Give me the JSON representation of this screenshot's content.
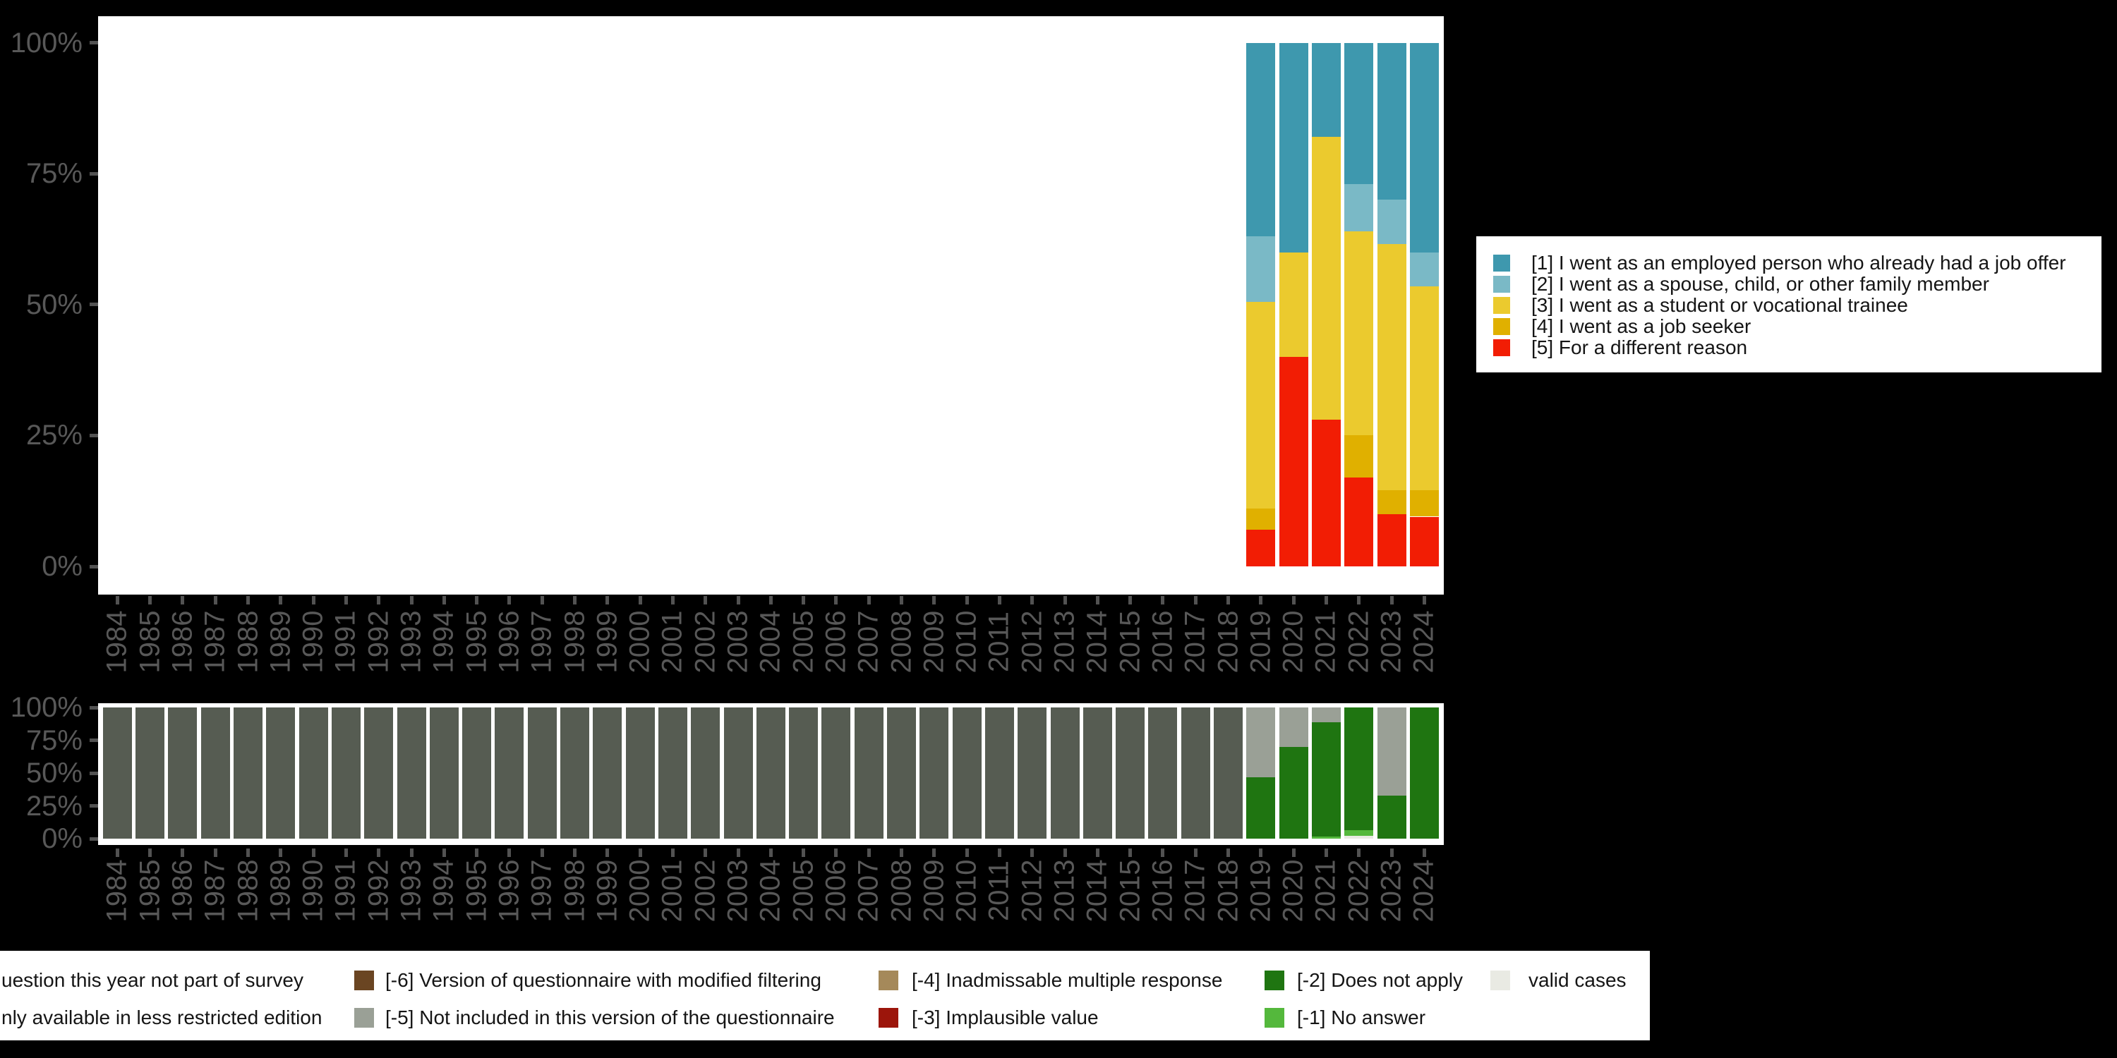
{
  "colors": {
    "background": "#000000",
    "panel": "#ffffff",
    "axis_text": "#585858",
    "tick": "#525252",
    "legend_text": "#151515"
  },
  "y_axis_ticks": [
    "100%",
    "75%",
    "50%",
    "25%",
    "0%"
  ],
  "reason_legend": {
    "items": [
      {
        "label": "[1] I went as an employed person who already had a job offer",
        "color": "#3e98ae"
      },
      {
        "label": "[2] I went as a spouse, child, or other family member",
        "color": "#7ab9c6"
      },
      {
        "label": "[3] I went as a student or vocational trainee",
        "color": "#ebca2e"
      },
      {
        "label": "[4] I went as a job seeker",
        "color": "#e0b000"
      },
      {
        "label": "[5] For a different reason",
        "color": "#f21d04"
      }
    ]
  },
  "missing_legend": {
    "rows": [
      [
        {
          "label": "uestion this year not part of survey",
          "color": null
        },
        {
          "label": "[-6] Version of questionnaire with modified filtering",
          "color": "#6a4522"
        },
        {
          "label": "[-4] Inadmissable multiple response",
          "color": "#a5895a"
        },
        {
          "label": "[-2] Does not apply",
          "color": "#1f7511"
        },
        {
          "label": "valid cases",
          "color": "#e9eae3"
        }
      ],
      [
        {
          "label": "nly available in less restricted edition",
          "color": null
        },
        {
          "label": "[-5] Not included in this version of the questionnaire",
          "color": "#9aa096"
        },
        {
          "label": "[-3] Implausible value",
          "color": "#9c150b"
        },
        {
          "label": "[-1] No answer",
          "color": "#54b83c"
        }
      ]
    ]
  },
  "chart_data": [
    {
      "type": "bar",
      "stacked": true,
      "title": "",
      "xlabel": "",
      "ylabel": "",
      "ylim": [
        0,
        100
      ],
      "y_tick_labels": [
        "0%",
        "25%",
        "50%",
        "75%",
        "100%"
      ],
      "legend_position": "right",
      "x_tick_labels_rotated": true,
      "categories": [
        "1984",
        "1985",
        "1986",
        "1987",
        "1988",
        "1989",
        "1990",
        "1991",
        "1992",
        "1993",
        "1994",
        "1995",
        "1996",
        "1997",
        "1998",
        "1999",
        "2000",
        "2001",
        "2002",
        "2003",
        "2004",
        "2005",
        "2006",
        "2007",
        "2008",
        "2009",
        "2010",
        "2011",
        "2012",
        "2013",
        "2014",
        "2015",
        "2016",
        "2017",
        "2018",
        "2019",
        "2020",
        "2021",
        "2022",
        "2023",
        "2024"
      ],
      "series": [
        {
          "name": "[1] I went as an employed person who already had a job offer",
          "color": "#3e98ae",
          "values": [
            0,
            0,
            0,
            0,
            0,
            0,
            0,
            0,
            0,
            0,
            0,
            0,
            0,
            0,
            0,
            0,
            0,
            0,
            0,
            0,
            0,
            0,
            0,
            0,
            0,
            0,
            0,
            0,
            0,
            0,
            0,
            0,
            0,
            0,
            0,
            37,
            40,
            18,
            27,
            30,
            40
          ]
        },
        {
          "name": "[2] I went as a spouse, child, or other family member",
          "color": "#7ab9c6",
          "values": [
            0,
            0,
            0,
            0,
            0,
            0,
            0,
            0,
            0,
            0,
            0,
            0,
            0,
            0,
            0,
            0,
            0,
            0,
            0,
            0,
            0,
            0,
            0,
            0,
            0,
            0,
            0,
            0,
            0,
            0,
            0,
            0,
            0,
            0,
            0,
            12.5,
            0,
            0,
            9,
            8.5,
            6.5
          ]
        },
        {
          "name": "[3] I went as a student or vocational trainee",
          "color": "#ebca2e",
          "values": [
            0,
            0,
            0,
            0,
            0,
            0,
            0,
            0,
            0,
            0,
            0,
            0,
            0,
            0,
            0,
            0,
            0,
            0,
            0,
            0,
            0,
            0,
            0,
            0,
            0,
            0,
            0,
            0,
            0,
            0,
            0,
            0,
            0,
            0,
            0,
            39.5,
            20,
            54,
            39,
            47,
            39
          ]
        },
        {
          "name": "[4] I went as a job seeker",
          "color": "#e0b000",
          "values": [
            0,
            0,
            0,
            0,
            0,
            0,
            0,
            0,
            0,
            0,
            0,
            0,
            0,
            0,
            0,
            0,
            0,
            0,
            0,
            0,
            0,
            0,
            0,
            0,
            0,
            0,
            0,
            0,
            0,
            0,
            0,
            0,
            0,
            0,
            0,
            4,
            0,
            0,
            8,
            4.5,
            5
          ]
        },
        {
          "name": "[5] For a different reason",
          "color": "#f21d04",
          "values": [
            0,
            0,
            0,
            0,
            0,
            0,
            0,
            0,
            0,
            0,
            0,
            0,
            0,
            0,
            0,
            0,
            0,
            0,
            0,
            0,
            0,
            0,
            0,
            0,
            0,
            0,
            0,
            0,
            0,
            0,
            0,
            0,
            0,
            0,
            0,
            7,
            40,
            28,
            17,
            10,
            9.5
          ]
        }
      ]
    },
    {
      "type": "bar",
      "stacked": true,
      "title": "",
      "xlabel": "",
      "ylabel": "",
      "ylim": [
        0,
        100
      ],
      "y_tick_labels": [
        "0%",
        "25%",
        "50%",
        "75%",
        "100%"
      ],
      "legend_position": "bottom",
      "x_tick_labels_rotated": true,
      "categories": [
        "1984",
        "1985",
        "1986",
        "1987",
        "1988",
        "1989",
        "1990",
        "1991",
        "1992",
        "1993",
        "1994",
        "1995",
        "1996",
        "1997",
        "1998",
        "1999",
        "2000",
        "2001",
        "2002",
        "2003",
        "2004",
        "2005",
        "2006",
        "2007",
        "2008",
        "2009",
        "2010",
        "2011",
        "2012",
        "2013",
        "2014",
        "2015",
        "2016",
        "2017",
        "2018",
        "2019",
        "2020",
        "2021",
        "2022",
        "2023",
        "2024"
      ],
      "series": [
        {
          "name": "uestion this year not part of survey",
          "color": "#565c52",
          "values": [
            100,
            100,
            100,
            100,
            100,
            100,
            100,
            100,
            100,
            100,
            100,
            100,
            100,
            100,
            100,
            100,
            100,
            100,
            100,
            100,
            100,
            100,
            100,
            100,
            100,
            100,
            100,
            100,
            100,
            100,
            100,
            100,
            100,
            100,
            100,
            0,
            0,
            0,
            0,
            0,
            0
          ]
        },
        {
          "name": "[-5] Not included in this version of the questionnaire",
          "color": "#9aa096",
          "values": [
            0,
            0,
            0,
            0,
            0,
            0,
            0,
            0,
            0,
            0,
            0,
            0,
            0,
            0,
            0,
            0,
            0,
            0,
            0,
            0,
            0,
            0,
            0,
            0,
            0,
            0,
            0,
            0,
            0,
            0,
            0,
            0,
            0,
            0,
            0,
            53,
            30,
            11,
            0,
            67,
            0
          ]
        },
        {
          "name": "[-2] Does not apply",
          "color": "#1f7511",
          "values": [
            0,
            0,
            0,
            0,
            0,
            0,
            0,
            0,
            0,
            0,
            0,
            0,
            0,
            0,
            0,
            0,
            0,
            0,
            0,
            0,
            0,
            0,
            0,
            0,
            0,
            0,
            0,
            0,
            0,
            0,
            0,
            0,
            0,
            0,
            0,
            47,
            70,
            87.5,
            93.5,
            33,
            100
          ]
        },
        {
          "name": "[-1] No answer",
          "color": "#54b83c",
          "values": [
            0,
            0,
            0,
            0,
            0,
            0,
            0,
            0,
            0,
            0,
            0,
            0,
            0,
            0,
            0,
            0,
            0,
            0,
            0,
            0,
            0,
            0,
            0,
            0,
            0,
            0,
            0,
            0,
            0,
            0,
            0,
            0,
            0,
            0,
            0,
            0,
            0,
            1.5,
            4.5,
            0,
            0
          ]
        },
        {
          "name": "valid cases",
          "color": "#e9eae3",
          "values": [
            0,
            0,
            0,
            0,
            0,
            0,
            0,
            0,
            0,
            0,
            0,
            0,
            0,
            0,
            0,
            0,
            0,
            0,
            0,
            0,
            0,
            0,
            0,
            0,
            0,
            0,
            0,
            0,
            0,
            0,
            0,
            0,
            0,
            0,
            0,
            0,
            0,
            0,
            2,
            0,
            0
          ]
        }
      ]
    }
  ]
}
